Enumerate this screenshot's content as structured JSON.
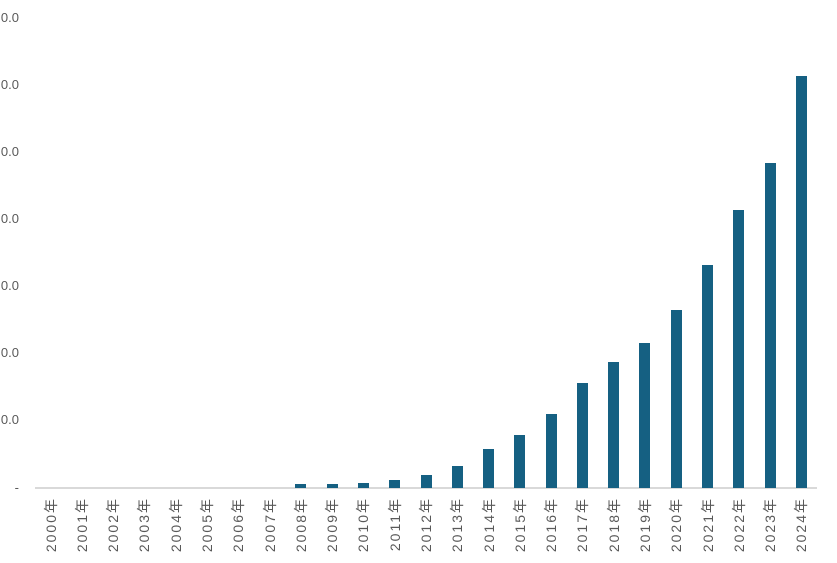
{
  "chart_data": {
    "type": "bar",
    "title": "",
    "xlabel": "",
    "ylabel": "",
    "categories": [
      "2000年",
      "2001年",
      "2002年",
      "2003年",
      "2004年",
      "2005年",
      "2006年",
      "2007年",
      "2008年",
      "2009年",
      "2010年",
      "2011年",
      "2012年",
      "2013年",
      "2014年",
      "2015年",
      "2016年",
      "2017年",
      "2018年",
      "2019年",
      "2020年",
      "2021年",
      "2022年",
      "2023年",
      "2024年"
    ],
    "values": [
      0,
      0,
      0,
      0,
      0,
      0,
      0,
      0,
      0.05,
      0.05,
      0.07,
      0.11,
      0.18,
      0.32,
      0.58,
      0.78,
      1.1,
      1.56,
      1.87,
      2.16,
      2.64,
      3.32,
      4.14,
      4.83,
      6.13
    ],
    "value_unit": "y-axis gridline intervals (estimated; numeric tick labels are cropped at the left edge of the image)",
    "ylim": [
      0,
      7.3
    ],
    "y_tick_interval": 1,
    "y_tick_count_above_zero": 7,
    "y_tick_visible_text": "0.0",
    "y_zero_label": "-",
    "grid": "off",
    "legend": "none",
    "colors": {
      "bar": "#156082",
      "axis_line": "#d9d9d9",
      "tick_label": "#595959",
      "background": "#ffffff"
    }
  }
}
